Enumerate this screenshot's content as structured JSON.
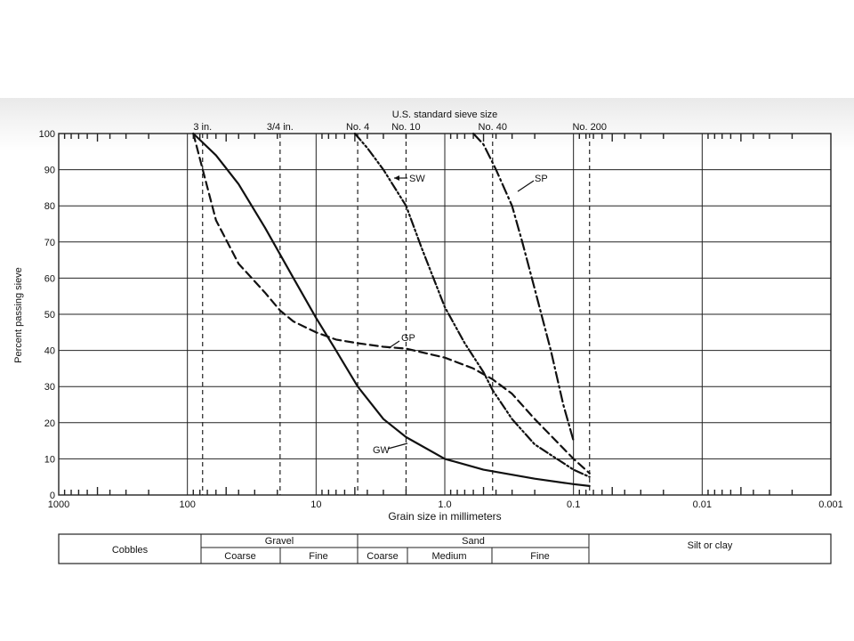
{
  "chart_data": {
    "type": "line",
    "title": "U.S. standard sieve size",
    "xlabel": "Grain size in millimeters",
    "ylabel": "Percent passing sieve",
    "xscale": "log",
    "xaxis_reversed": true,
    "xlim": [
      1000,
      0.001
    ],
    "ylim": [
      0,
      100
    ],
    "grid": true,
    "x_tick_labels": [
      "1000",
      "100",
      "10",
      "1.0",
      "0.1",
      "0.01",
      "0.001"
    ],
    "x_tick_values": [
      1000,
      100,
      10,
      1,
      0.1,
      0.01,
      0.001
    ],
    "y_tick_labels": [
      "0",
      "10",
      "20",
      "30",
      "40",
      "50",
      "60",
      "70",
      "80",
      "90",
      "100"
    ],
    "sieves": [
      {
        "label": "3 in.",
        "size_mm": 76.2
      },
      {
        "label": "3/4 in.",
        "size_mm": 19.05
      },
      {
        "label": "No. 4",
        "size_mm": 4.75
      },
      {
        "label": "No. 10",
        "size_mm": 2.0
      },
      {
        "label": "No. 40",
        "size_mm": 0.425
      },
      {
        "label": "No. 200",
        "size_mm": 0.075
      }
    ],
    "series": [
      {
        "name": "GW",
        "style": "solid",
        "x": [
          90,
          60,
          40,
          25,
          15,
          10,
          7,
          4.75,
          3,
          2,
          1,
          0.5,
          0.2,
          0.1,
          0.075
        ],
        "y": [
          100,
          94,
          86,
          74,
          60,
          49,
          40,
          30,
          21,
          16,
          10,
          7,
          4.5,
          3,
          2.5
        ]
      },
      {
        "name": "GP",
        "style": "dashed",
        "x": [
          90,
          76,
          60,
          40,
          25,
          19,
          15,
          10,
          7,
          4.75,
          3,
          2,
          1,
          0.6,
          0.425,
          0.3,
          0.2,
          0.1,
          0.075
        ],
        "y": [
          100,
          90,
          76,
          64,
          56,
          51,
          48,
          45,
          43,
          42,
          41,
          40.5,
          38,
          35,
          32,
          28,
          21,
          10,
          6
        ]
      },
      {
        "name": "SW",
        "style": "dash-dot-dot",
        "x": [
          5,
          4,
          3,
          2,
          1.5,
          1,
          0.7,
          0.5,
          0.425,
          0.3,
          0.2,
          0.1,
          0.075
        ],
        "y": [
          100,
          96,
          90,
          80,
          68,
          52,
          42,
          34,
          29,
          21,
          14,
          7,
          5
        ]
      },
      {
        "name": "SP",
        "style": "dash-dot",
        "x": [
          0.6,
          0.5,
          0.4,
          0.3,
          0.25,
          0.2,
          0.15,
          0.12,
          0.1
        ],
        "y": [
          100,
          97,
          90,
          80,
          70,
          57,
          40,
          25,
          15
        ]
      }
    ],
    "labels": {
      "sw": "SW",
      "sp": "SP",
      "gp": "GP",
      "gw": "GW"
    }
  },
  "classification": {
    "cobbles": "Cobbles",
    "gravel": "Gravel",
    "gravel_coarse": "Coarse",
    "gravel_fine": "Fine",
    "sand": "Sand",
    "sand_coarse": "Coarse",
    "sand_medium": "Medium",
    "sand_fine": "Fine",
    "silt_clay": "Silt or clay"
  }
}
